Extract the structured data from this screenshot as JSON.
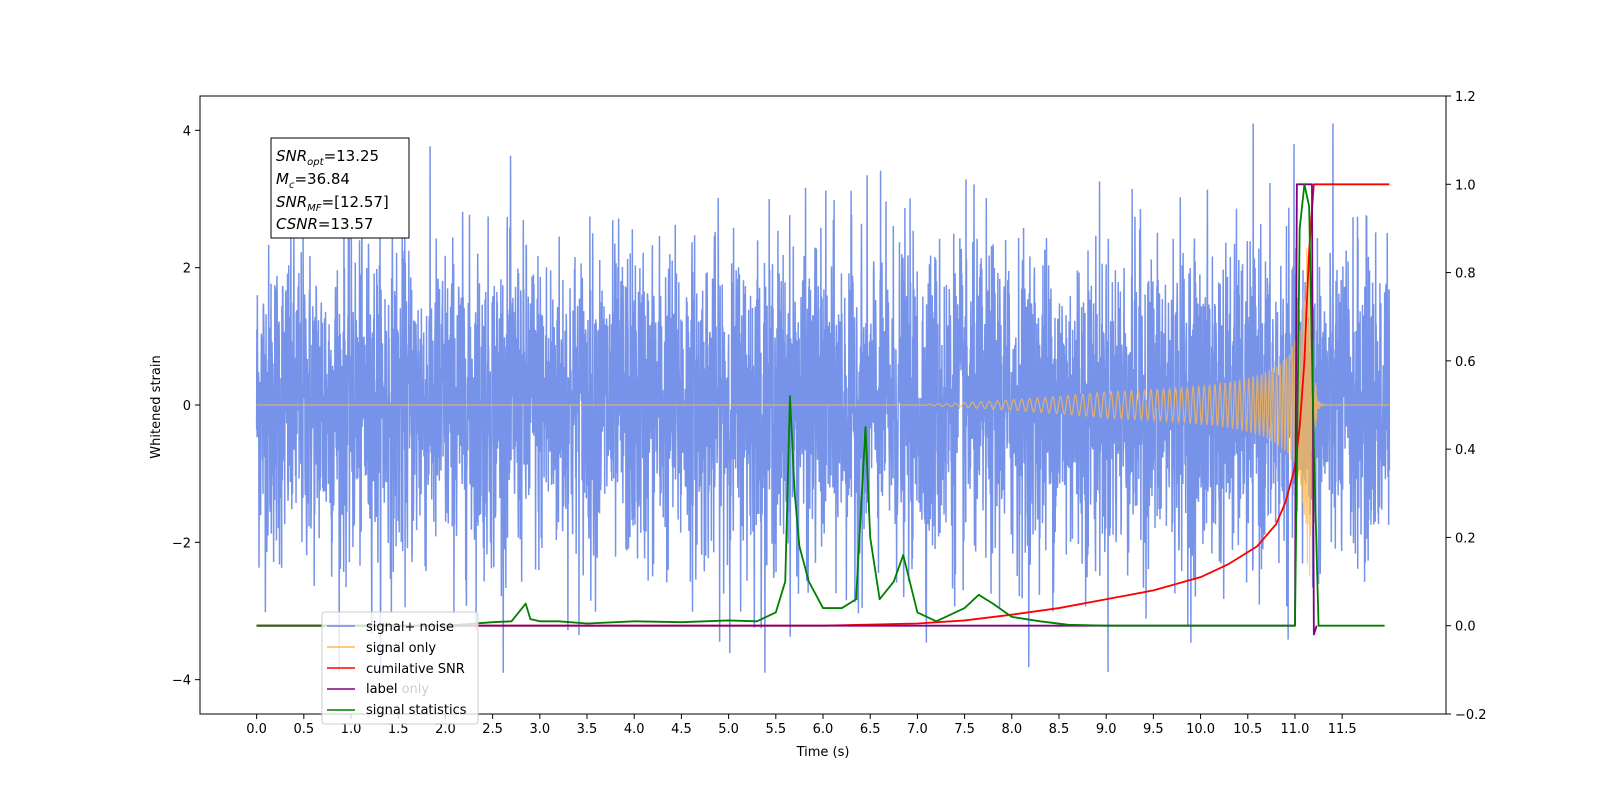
{
  "chart_data": {
    "type": "line",
    "xlabel": "Time (s)",
    "ylabel": "Whitened strain",
    "xlim": [
      -0.6,
      12.6
    ],
    "ylim": [
      -4.5,
      4.5
    ],
    "y2lim": [
      -0.2,
      1.2
    ],
    "xticks": [
      "0.0",
      "0.5",
      "1.0",
      "1.5",
      "2.0",
      "2.5",
      "3.0",
      "3.5",
      "4.0",
      "4.5",
      "5.0",
      "5.5",
      "6.0",
      "6.5",
      "7.0",
      "7.5",
      "8.0",
      "8.5",
      "9.0",
      "9.5",
      "10.0",
      "10.5",
      "11.0",
      "11.5"
    ],
    "yticks": [
      "−4",
      "−2",
      "0",
      "2",
      "4"
    ],
    "y2ticks": [
      "−0.2",
      "0.0",
      "0.2",
      "0.4",
      "0.6",
      "0.8",
      "1.0",
      "1.2"
    ],
    "annotation": {
      "lines": [
        {
          "base": "SNR",
          "sub": "opt",
          "rest": "=13.25"
        },
        {
          "base": "M",
          "sub": "c",
          "rest": "=36.84"
        },
        {
          "base": "SNR",
          "sub": "MF",
          "rest": "=[12.57]"
        },
        {
          "base": "CSNR",
          "sub": "",
          "rest": "=13.57"
        }
      ]
    },
    "legend": {
      "placement": "lower-left",
      "entries": [
        {
          "label": "signal+ noise",
          "color": "#6f8de8"
        },
        {
          "label": "signal only",
          "color": "#ffb84d"
        },
        {
          "label": "cumilative SNR",
          "color": "#ff0000"
        },
        {
          "label": "label",
          "color": "#800080"
        },
        {
          "label": "signal statistics",
          "color": "#008000"
        }
      ],
      "hidden_text": "label only"
    },
    "series": [
      {
        "name": "signal+ noise",
        "axis": "left",
        "color": "#6f8de8",
        "x_range": [
          0.0,
          12.0
        ],
        "amplitude_sd": 1.0,
        "peak_max": 4.1,
        "peak_min": -3.9
      },
      {
        "name": "signal only",
        "axis": "left",
        "color": "#ffb84d",
        "x_range": [
          0.0,
          12.0
        ],
        "chirp_start": 7.0,
        "merger_time": 11.15,
        "peak_amplitude": 2.5
      },
      {
        "name": "cumilative SNR",
        "axis": "right",
        "x": [
          0.0,
          6.0,
          7.0,
          7.5,
          8.0,
          8.5,
          9.0,
          9.5,
          10.0,
          10.3,
          10.6,
          10.8,
          10.9,
          11.0,
          11.05,
          11.1,
          11.15,
          11.2,
          11.4,
          11.7,
          12.0
        ],
        "y": [
          0.0,
          0.0,
          0.005,
          0.012,
          0.025,
          0.04,
          0.06,
          0.08,
          0.11,
          0.14,
          0.18,
          0.23,
          0.28,
          0.36,
          0.45,
          0.6,
          0.85,
          1.0,
          1.0,
          1.0,
          1.0
        ],
        "color": "#ff0000"
      },
      {
        "name": "label",
        "axis": "right",
        "x": [
          0.0,
          11.0,
          11.02,
          11.18,
          11.2,
          11.23
        ],
        "y": [
          0.0,
          0.0,
          1.0,
          1.0,
          -0.02,
          0.0
        ],
        "color": "#800080"
      },
      {
        "name": "signal statistics",
        "axis": "right",
        "x": [
          0.0,
          2.0,
          2.5,
          2.7,
          2.85,
          2.9,
          3.0,
          3.2,
          3.5,
          4.0,
          4.5,
          5.0,
          5.3,
          5.5,
          5.6,
          5.65,
          5.7,
          5.75,
          5.85,
          6.0,
          6.2,
          6.35,
          6.45,
          6.5,
          6.6,
          6.75,
          6.85,
          7.0,
          7.2,
          7.5,
          7.65,
          7.8,
          8.0,
          8.3,
          8.6,
          9.0,
          10.0,
          11.0,
          11.05,
          11.1,
          11.15,
          11.2,
          11.25,
          11.3,
          11.5,
          11.8,
          11.95
        ],
        "y": [
          0.0,
          0.0,
          0.008,
          0.01,
          0.05,
          0.015,
          0.01,
          0.01,
          0.005,
          0.01,
          0.008,
          0.012,
          0.01,
          0.03,
          0.1,
          0.52,
          0.3,
          0.18,
          0.1,
          0.04,
          0.04,
          0.06,
          0.45,
          0.2,
          0.06,
          0.1,
          0.16,
          0.03,
          0.01,
          0.04,
          0.07,
          0.05,
          0.02,
          0.01,
          0.002,
          0.0,
          0.0,
          0.0,
          0.9,
          1.0,
          0.95,
          0.4,
          0.0,
          0.0,
          0.0,
          0.0,
          0.0
        ],
        "color": "#008000"
      }
    ]
  }
}
